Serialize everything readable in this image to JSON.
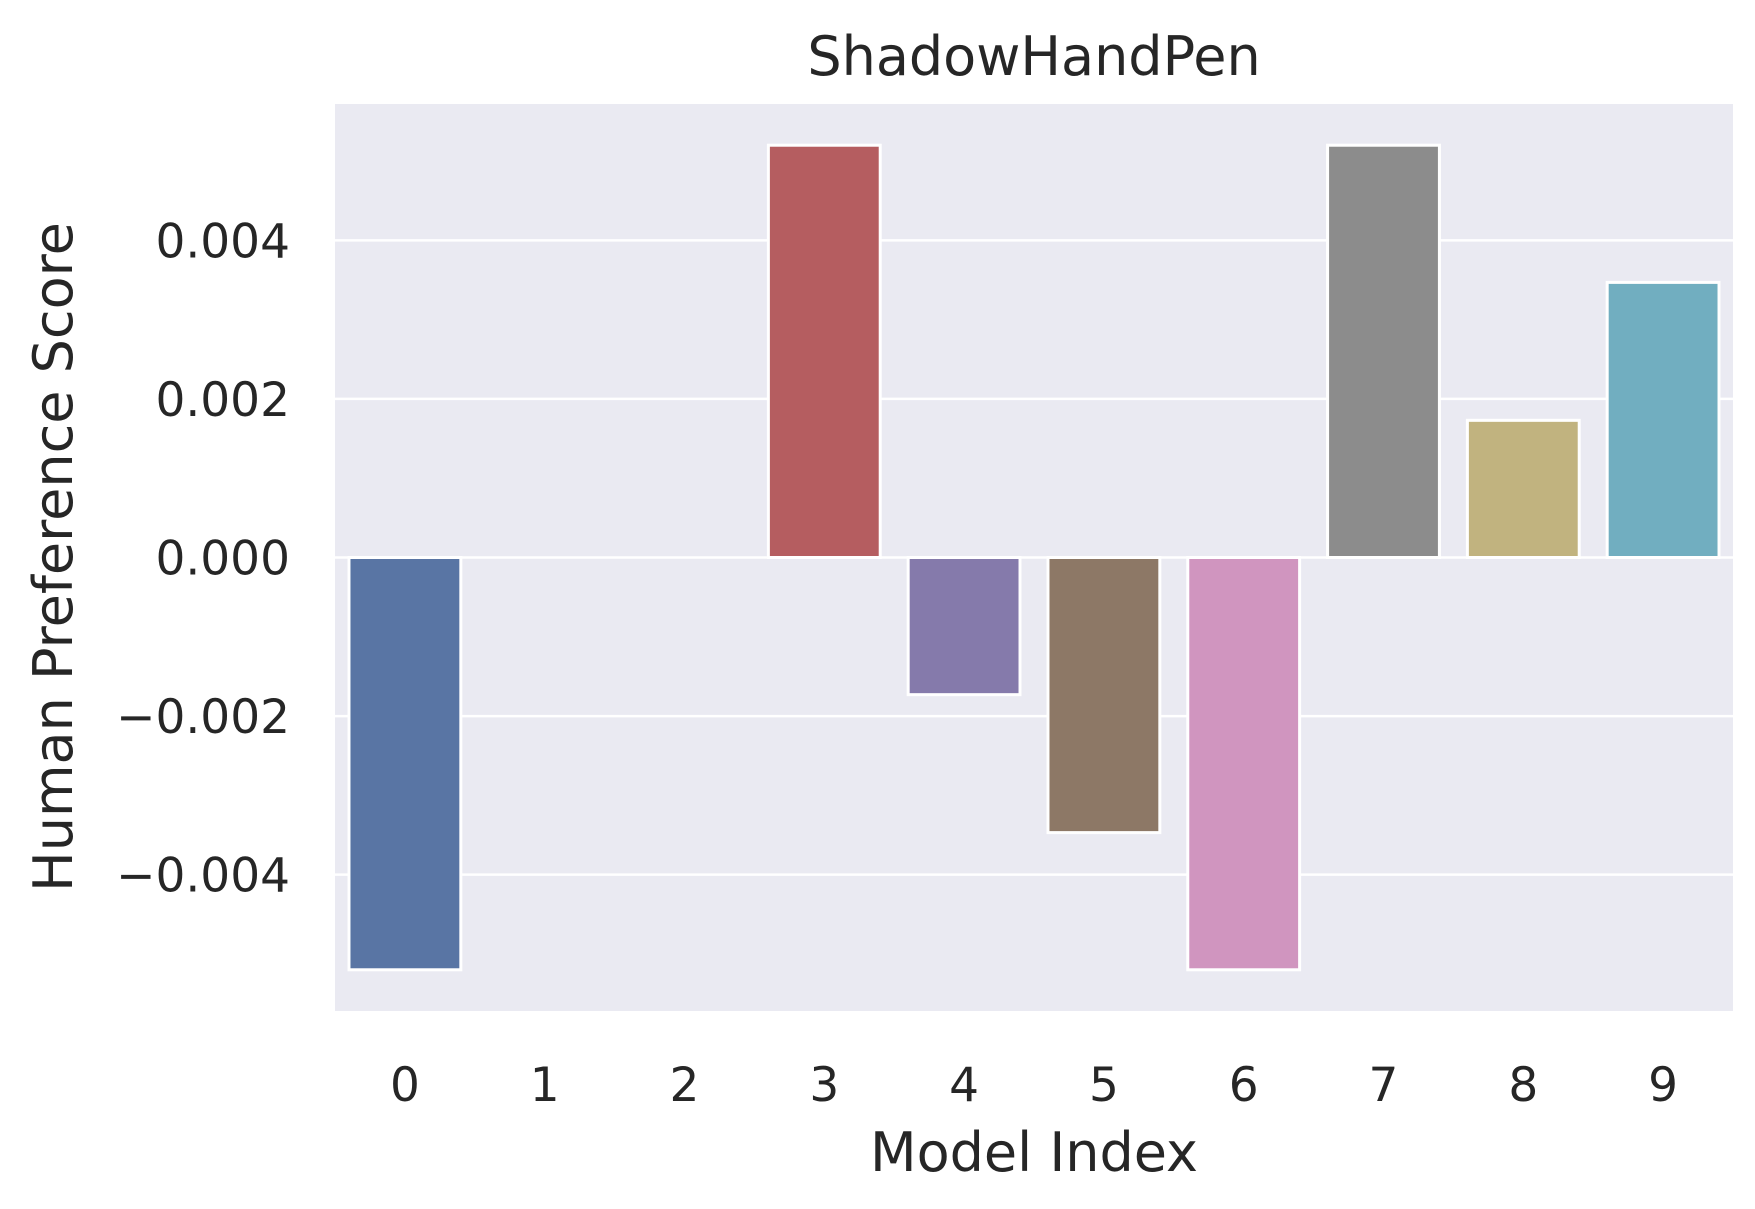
{
  "chart_data": {
    "type": "bar",
    "title": "ShadowHandPen",
    "xlabel": "Model Index",
    "ylabel": "Human Preference Score",
    "categories": [
      "0",
      "1",
      "2",
      "3",
      "4",
      "5",
      "6",
      "7",
      "8",
      "9"
    ],
    "values": [
      -0.0052,
      0.0,
      0.0,
      0.0052,
      -0.00173,
      -0.00347,
      -0.0052,
      0.0052,
      0.00173,
      0.00347
    ],
    "colors": [
      "#5975a4",
      "#cc8963",
      "#5f9e6e",
      "#b55d60",
      "#857aab",
      "#8d7866",
      "#d095bf",
      "#8c8c8c",
      "#c1b37f",
      "#71aec0"
    ],
    "ylim": [
      -0.00572,
      0.00572
    ],
    "yticks": [
      -0.004,
      -0.002,
      0.0,
      0.002,
      0.004
    ],
    "ytick_labels": [
      "−0.004",
      "−0.002",
      "0.000",
      "0.002",
      "0.004"
    ],
    "grid": true,
    "background": "#eaeaf2",
    "gridcolor": "#ffffff"
  }
}
